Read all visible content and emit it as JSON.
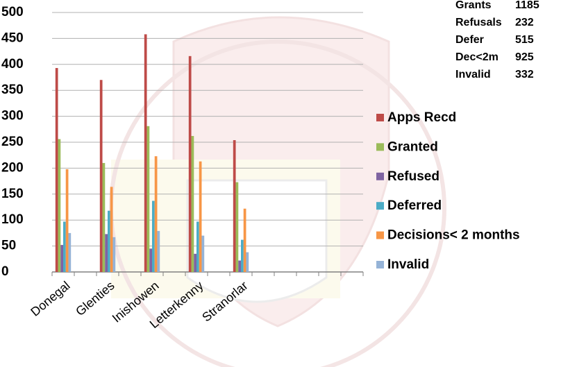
{
  "chart_data": {
    "type": "bar",
    "categories": [
      "Donegal",
      null,
      "Glenties",
      null,
      "Inishowen",
      null,
      "Letterkenny",
      null,
      "Stranorlar",
      null,
      null,
      null,
      null,
      null
    ],
    "series": [
      {
        "name": "Apps Recd",
        "color": "#be4b48",
        "values": [
          393,
          null,
          370,
          null,
          458,
          null,
          416,
          null,
          254,
          null,
          null,
          null,
          null,
          null
        ]
      },
      {
        "name": "Granted",
        "color": "#9bbb59",
        "values": [
          256,
          null,
          210,
          null,
          281,
          null,
          262,
          null,
          173,
          null,
          null,
          null,
          null,
          null
        ]
      },
      {
        "name": "Refused",
        "color": "#7f64a2",
        "values": [
          52,
          null,
          73,
          null,
          45,
          null,
          35,
          null,
          22,
          null,
          null,
          null,
          null,
          null
        ]
      },
      {
        "name": "Deferred",
        "color": "#4bacc6",
        "values": [
          97,
          null,
          118,
          null,
          137,
          null,
          97,
          null,
          62,
          null,
          null,
          null,
          null,
          null
        ]
      },
      {
        "name": "Decisions<  2 months",
        "color": "#f79646",
        "values": [
          198,
          null,
          164,
          null,
          223,
          null,
          213,
          null,
          122,
          null,
          null,
          null,
          null,
          null
        ]
      },
      {
        "name": "Invalid",
        "color": "#95b3d7",
        "values": [
          75,
          null,
          67,
          null,
          79,
          null,
          70,
          null,
          38,
          null,
          null,
          null,
          null,
          null
        ]
      }
    ],
    "ylim": [
      0,
      500
    ],
    "yticks": [
      0,
      50,
      100,
      150,
      200,
      250,
      300,
      350,
      400,
      450,
      500
    ],
    "grid": true,
    "legend": "right",
    "annotations": [
      {
        "label": "Grants",
        "value": 1185
      },
      {
        "label": "Refusals",
        "value": 232
      },
      {
        "label": "Defer",
        "value": 515
      },
      {
        "label": "Dec<2m",
        "value": 925
      },
      {
        "label": "Invalid",
        "value": 332
      }
    ]
  }
}
